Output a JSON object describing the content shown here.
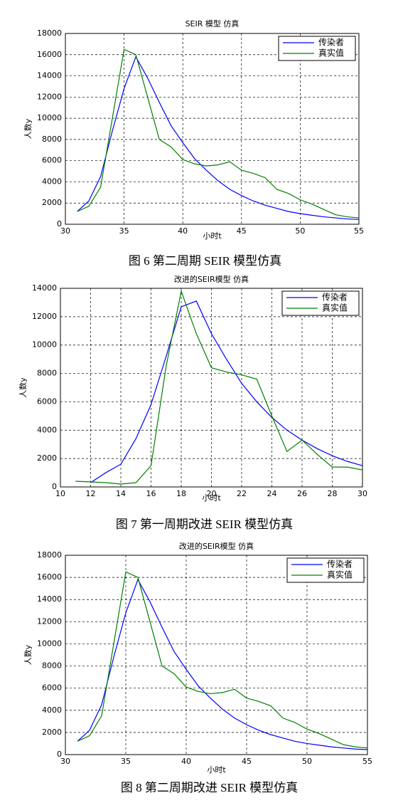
{
  "chart_data": [
    {
      "type": "line",
      "title": "SEIR 模型 仿真",
      "x_label": "小时t",
      "y_label": "人数y",
      "caption": "图 6 第二周期 SEIR 模型仿真",
      "x": [
        31,
        32,
        33,
        34,
        35,
        36,
        37,
        38,
        39,
        40,
        41,
        42,
        43,
        44,
        45,
        46,
        47,
        48,
        49,
        50,
        51,
        52,
        53,
        54,
        55
      ],
      "series": [
        {
          "name": "传染者",
          "color": "#0000ff",
          "values": [
            1200,
            2200,
            4500,
            8800,
            12800,
            15800,
            13800,
            11500,
            9300,
            7700,
            6200,
            5100,
            4100,
            3300,
            2700,
            2200,
            1800,
            1500,
            1200,
            1000,
            850,
            700,
            600,
            500,
            450
          ]
        },
        {
          "name": "真实值",
          "color": "#008000",
          "values": [
            1200,
            1700,
            3500,
            10000,
            16500,
            16000,
            12000,
            8000,
            7300,
            6100,
            5700,
            5500,
            5600,
            5900,
            5100,
            4800,
            4400,
            3300,
            2900,
            2300,
            1900,
            1400,
            900,
            700,
            600
          ]
        }
      ],
      "xlim": [
        30,
        55
      ],
      "xticks": [
        30,
        35,
        40,
        45,
        50,
        55
      ],
      "ylim": [
        0,
        18000
      ],
      "yticks": [
        0,
        2000,
        4000,
        6000,
        8000,
        10000,
        12000,
        14000,
        16000,
        18000
      ],
      "grid": true,
      "legend": "upper right"
    },
    {
      "type": "line",
      "title": "改进的SEIR模型 仿真",
      "x_label": "小时t",
      "y_label": "人数y",
      "caption": "图 7 第一周期改进 SEIR 模型仿真",
      "x": [
        11,
        12,
        13,
        14,
        15,
        16,
        17,
        18,
        19,
        20,
        21,
        22,
        23,
        24,
        25,
        26,
        27,
        28,
        29,
        30
      ],
      "series": [
        {
          "name": "传染者",
          "color": "#0000ff",
          "values": [
            null,
            300,
            1000,
            1600,
            3400,
            5800,
            9200,
            12700,
            13100,
            10800,
            9000,
            7300,
            6000,
            4900,
            4000,
            3300,
            2700,
            2200,
            1800,
            1500
          ]
        },
        {
          "name": "真实值",
          "color": "#008000",
          "values": [
            400,
            350,
            300,
            200,
            300,
            1500,
            8500,
            13800,
            10800,
            8400,
            8100,
            7900,
            7600,
            5000,
            2500,
            3300,
            2300,
            1400,
            1400,
            1200
          ]
        }
      ],
      "xlim": [
        10,
        30
      ],
      "xticks": [
        10,
        12,
        14,
        16,
        18,
        20,
        22,
        24,
        26,
        28,
        30
      ],
      "ylim": [
        0,
        14000
      ],
      "yticks": [
        0,
        2000,
        4000,
        6000,
        8000,
        10000,
        12000,
        14000
      ],
      "grid": true,
      "legend": "upper right"
    },
    {
      "type": "line",
      "title": "改进的SEIR模型 仿真",
      "x_label": "小时t",
      "y_label": "人数y",
      "caption": "图 8 第二周期改进 SEIR 模型仿真",
      "x": [
        31,
        32,
        33,
        34,
        35,
        36,
        37,
        38,
        39,
        40,
        41,
        42,
        43,
        44,
        45,
        46,
        47,
        48,
        49,
        50,
        51,
        52,
        53,
        54,
        55
      ],
      "series": [
        {
          "name": "传染者",
          "color": "#0000ff",
          "values": [
            1200,
            2200,
            4500,
            8800,
            12800,
            15800,
            13800,
            11500,
            9300,
            7700,
            6200,
            5100,
            4100,
            3300,
            2700,
            2200,
            1800,
            1500,
            1200,
            1000,
            850,
            700,
            600,
            500,
            450
          ]
        },
        {
          "name": "真实值",
          "color": "#008000",
          "values": [
            1200,
            1700,
            3500,
            10000,
            16500,
            16000,
            12000,
            8000,
            7300,
            6100,
            5700,
            5500,
            5600,
            5900,
            5100,
            4800,
            4400,
            3300,
            2900,
            2300,
            1900,
            1400,
            900,
            700,
            600
          ]
        }
      ],
      "xlim": [
        30,
        55
      ],
      "xticks": [
        30,
        35,
        40,
        45,
        50,
        55
      ],
      "ylim": [
        0,
        18000
      ],
      "yticks": [
        0,
        2000,
        4000,
        6000,
        8000,
        10000,
        12000,
        14000,
        16000,
        18000
      ],
      "grid": true,
      "legend": "upper right"
    }
  ]
}
